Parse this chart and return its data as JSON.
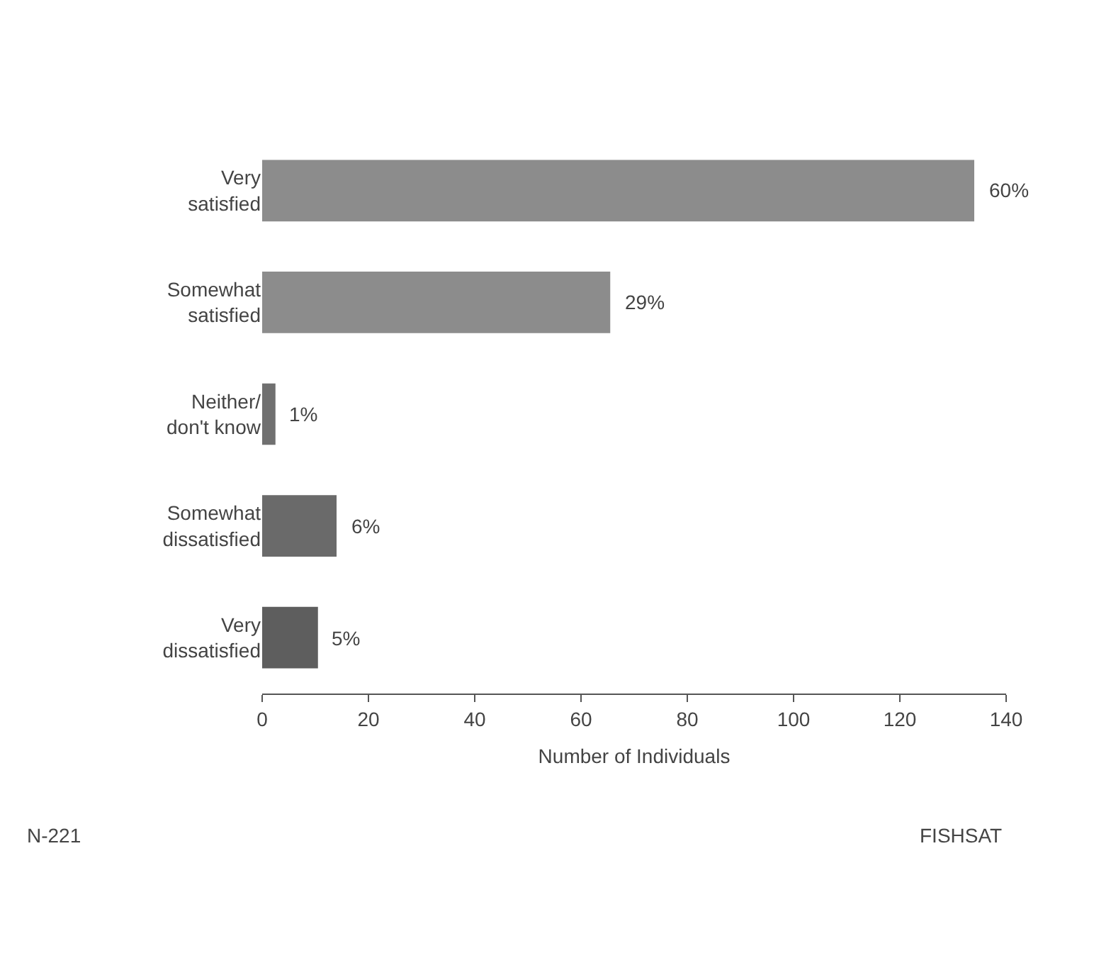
{
  "chart_data": {
    "type": "bar",
    "orientation": "horizontal",
    "xlabel": "Number of Individuals",
    "categories": [
      "Very satisfied",
      "Somewhat satisfied",
      "Neither/ don't know",
      "Somewhat dissatisfied",
      "Very dissatisfied"
    ],
    "values": [
      134,
      65.5,
      2.5,
      14,
      10.5
    ],
    "colors": [
      "#8c8c8c",
      "#8c8c8c",
      "#707070",
      "#6a6a6a",
      "#5e5e5e"
    ],
    "xlim": [
      0,
      140
    ],
    "xticks": [
      0,
      20,
      40,
      60,
      80,
      100,
      120,
      140
    ],
    "grid": false,
    "legend": false,
    "annotations": [
      "N-221",
      "FISHSAT",
      {
        "text": "60%",
        "x": 134,
        "y": "Very satisfied"
      },
      {
        "text": "29%",
        "x": 65.5,
        "y": "Somewhat satisfied"
      },
      {
        "text": "1%",
        "x": 2.5,
        "y": "Neither/ don't know"
      },
      {
        "text": "6%",
        "x": 14,
        "y": "Somewhat dissatisfied"
      },
      {
        "text": "5%",
        "x": 10.5,
        "y": "Very dissatisfied"
      }
    ]
  }
}
